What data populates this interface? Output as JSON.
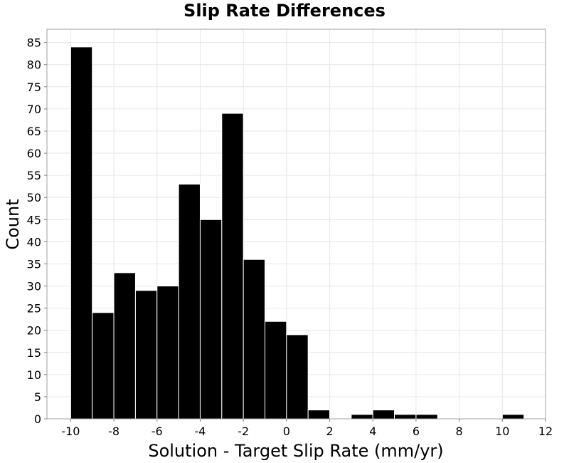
{
  "chart_data": {
    "type": "bar",
    "title": "Slip Rate Differences",
    "xlabel": "Solution - Target Slip Rate (mm/yr)",
    "ylabel": "Count",
    "xlim": [
      -11.1,
      12
    ],
    "ylim": [
      0,
      88
    ],
    "xticks": [
      -10,
      -8,
      -6,
      -4,
      -2,
      0,
      2,
      4,
      6,
      8,
      10,
      12
    ],
    "yticks": [
      0,
      5,
      10,
      15,
      20,
      25,
      30,
      35,
      40,
      45,
      50,
      55,
      60,
      65,
      70,
      75,
      80,
      85
    ],
    "bin_width": 1,
    "grid": true,
    "bins": [
      {
        "center": -9.5,
        "value": 84
      },
      {
        "center": -8.5,
        "value": 24
      },
      {
        "center": -7.5,
        "value": 33
      },
      {
        "center": -6.5,
        "value": 29
      },
      {
        "center": -5.5,
        "value": 30
      },
      {
        "center": -4.5,
        "value": 53
      },
      {
        "center": -3.5,
        "value": 45
      },
      {
        "center": -2.5,
        "value": 69
      },
      {
        "center": -1.5,
        "value": 36
      },
      {
        "center": -0.5,
        "value": 22
      },
      {
        "center": 0.5,
        "value": 19
      },
      {
        "center": 1.5,
        "value": 2
      },
      {
        "center": 2.5,
        "value": 0
      },
      {
        "center": 3.5,
        "value": 1
      },
      {
        "center": 4.5,
        "value": 2
      },
      {
        "center": 5.5,
        "value": 1
      },
      {
        "center": 6.5,
        "value": 1
      },
      {
        "center": 7.5,
        "value": 0
      },
      {
        "center": 8.5,
        "value": 0
      },
      {
        "center": 9.5,
        "value": 0
      },
      {
        "center": 10.5,
        "value": 1
      }
    ],
    "colors": {
      "bar": "#000000",
      "bar_edge": "#ffffff",
      "grid": "#e6e6e6",
      "frame": "#a0a0a0"
    }
  }
}
